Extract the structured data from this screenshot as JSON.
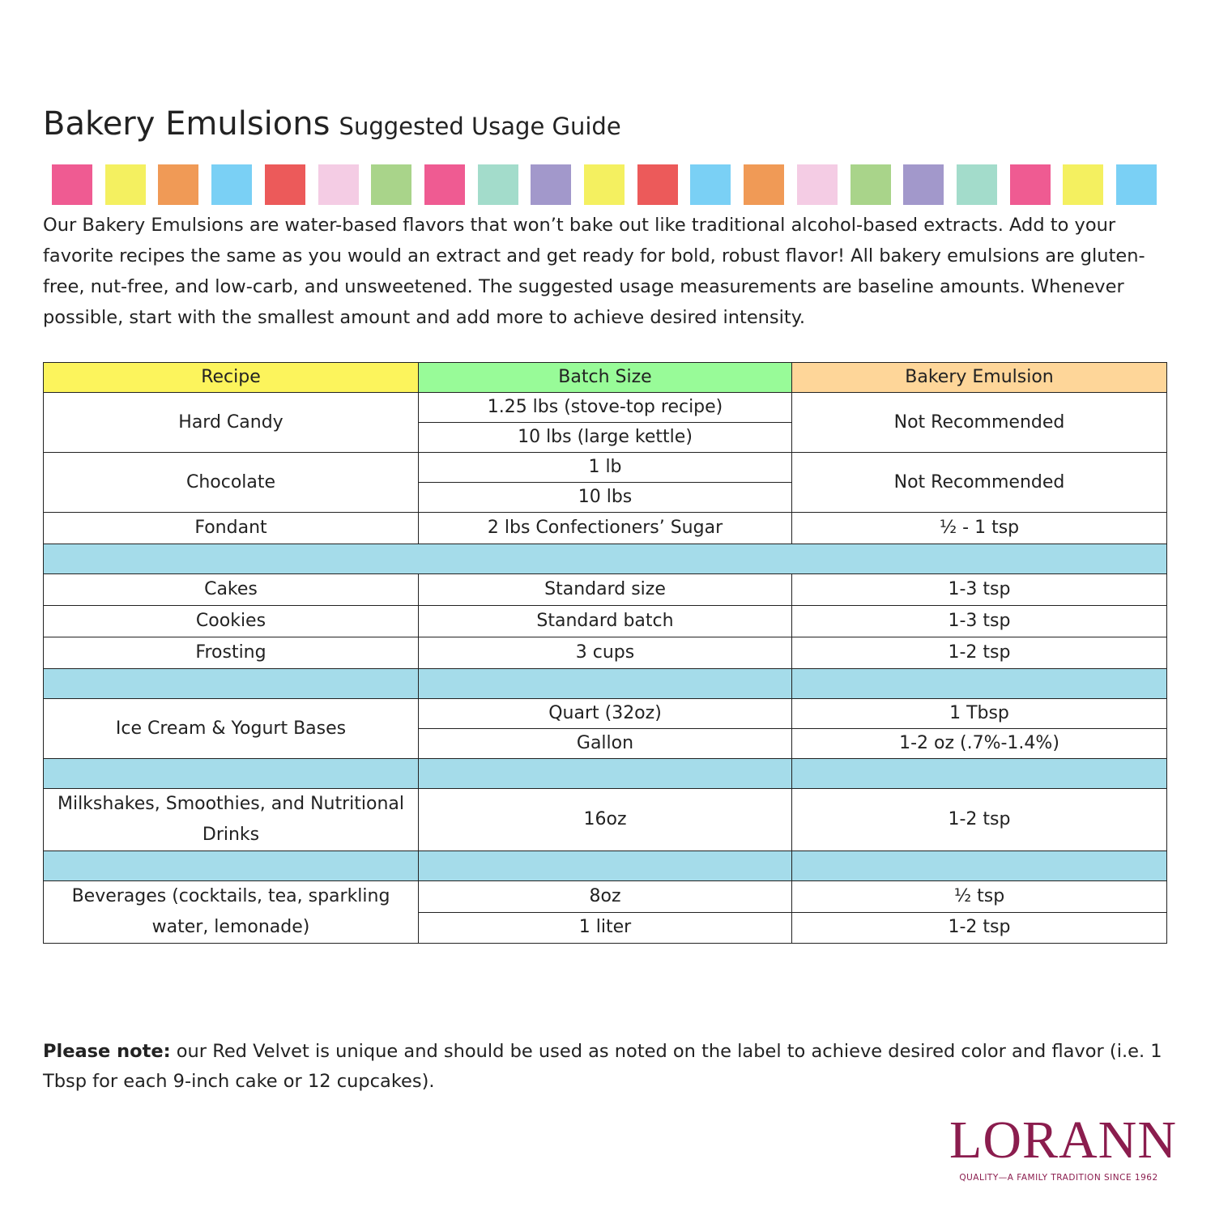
{
  "header": {
    "title": "Bakery Emulsions",
    "subtitle": "Suggested Usage Guide"
  },
  "intro": "Our Bakery Emulsions are water-based flavors that won’t bake out like traditional alcohol-based extracts. Add to your favorite recipes the same as you would an extract and get ready for bold, robust flavor! All bakery emulsions are gluten-free, nut-free, and low-carb, and unsweetened. The suggested usage measurements are baseline amounts. Whenever possible, start with the smallest amount and add more to achieve desired intensity.",
  "table": {
    "headers": [
      "Recipe",
      "Batch Size",
      "Bakery Emulsion"
    ],
    "sections": [
      [
        {
          "recipe": "Hard Candy",
          "batch_sizes": [
            "1.25 lbs (stove-top recipe)",
            "10 lbs (large kettle)"
          ],
          "amounts": [
            "Not Recommended"
          ]
        },
        {
          "recipe": "Chocolate",
          "batch_sizes": [
            "1 lb",
            "10 lbs"
          ],
          "amounts": [
            "Not Recommended"
          ]
        },
        {
          "recipe": "Fondant",
          "batch_sizes": [
            "2 lbs Confectioners’ Sugar"
          ],
          "amounts": [
            "½ - 1 tsp"
          ]
        }
      ],
      [
        {
          "recipe": "Cakes",
          "batch_sizes": [
            "Standard size"
          ],
          "amounts": [
            "1-3 tsp"
          ]
        },
        {
          "recipe": "Cookies",
          "batch_sizes": [
            "Standard batch"
          ],
          "amounts": [
            "1-3 tsp"
          ]
        },
        {
          "recipe": "Frosting",
          "batch_sizes": [
            "3 cups"
          ],
          "amounts": [
            "1-2 tsp"
          ]
        }
      ],
      [
        {
          "recipe": "Ice Cream & Yogurt Bases",
          "batch_sizes": [
            "Quart (32oz)",
            "Gallon"
          ],
          "amounts": [
            "1 Tbsp",
            "1-2 oz (.7%-1.4%)"
          ]
        }
      ],
      [
        {
          "recipe": "Milkshakes, Smoothies, and Nutritional Drinks",
          "batch_sizes": [
            "16oz"
          ],
          "amounts": [
            "1-2 tsp"
          ]
        }
      ],
      [
        {
          "recipe": "Beverages (cocktails, tea, sparkling water, lemonade)",
          "batch_sizes": [
            "8oz",
            "1 liter"
          ],
          "amounts": [
            "½ tsp",
            "1-2 tsp"
          ]
        }
      ]
    ]
  },
  "note": {
    "label": "Please note:",
    "text": "our Red Velvet is unique and should be used as noted on the label to achieve desired color and flavor (i.e. 1 Tbsp for each 9-inch cake or 12 cupcakes)."
  },
  "logo": {
    "name": "LORANN",
    "tagline": "QUALITY—A FAMILY TRADITION SINCE 1962"
  }
}
